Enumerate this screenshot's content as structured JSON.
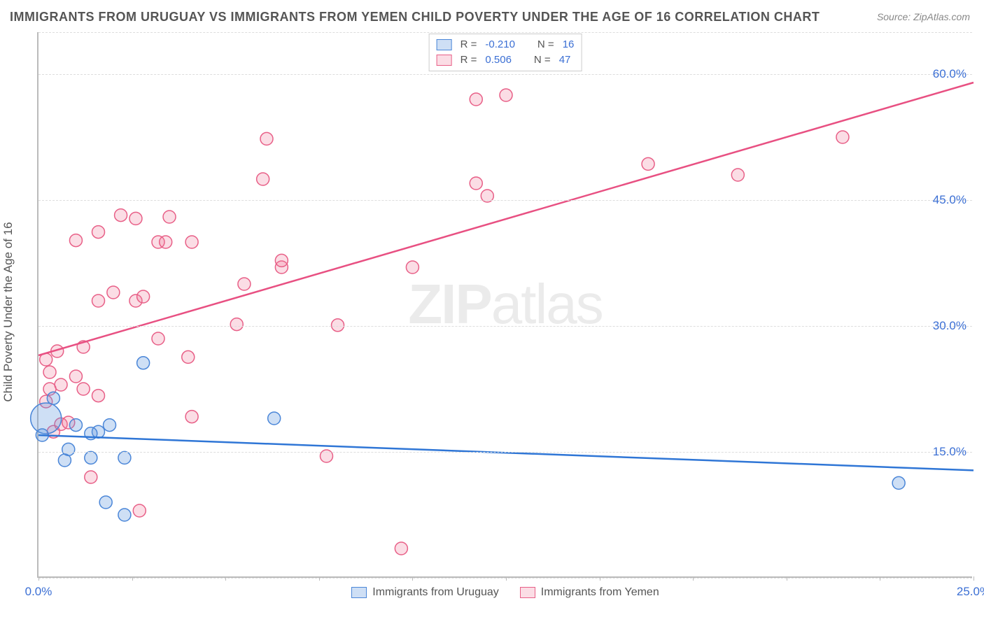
{
  "title": "IMMIGRANTS FROM URUGUAY VS IMMIGRANTS FROM YEMEN CHILD POVERTY UNDER THE AGE OF 16 CORRELATION CHART",
  "source": "Source: ZipAtlas.com",
  "ylabel": "Child Poverty Under the Age of 16",
  "watermark_bold": "ZIP",
  "watermark_light": "atlas",
  "chart": {
    "type": "scatter",
    "xlim": [
      0,
      25
    ],
    "ylim": [
      0,
      65
    ],
    "xticks": [
      0,
      25
    ],
    "xtick_labels": [
      "0.0%",
      "25.0%"
    ],
    "xtick_marks": [
      0,
      2.5,
      5,
      7.5,
      10,
      12.5,
      15,
      17.5,
      20,
      22.5,
      25
    ],
    "yticks": [
      15,
      30,
      45,
      60
    ],
    "ytick_labels": [
      "15.0%",
      "30.0%",
      "45.0%",
      "60.0%"
    ],
    "grid_y": [
      0,
      15,
      30,
      45,
      60,
      65
    ],
    "background_color": "#ffffff",
    "grid_color": "#dddddd",
    "axis_color": "#bbbbbb",
    "tick_label_color": "#3b6fd4"
  },
  "series": {
    "uruguay": {
      "label": "Immigrants from Uruguay",
      "color_fill": "rgba(93,150,222,0.30)",
      "color_stroke": "#4a86d8",
      "line_color": "#2f76d6",
      "marker_r": 9,
      "R_label": "R =",
      "R": "-0.210",
      "N_label": "N =",
      "N": "16",
      "trend": {
        "x1": 0,
        "y1": 17.0,
        "x2": 25,
        "y2": 12.8
      },
      "points": [
        {
          "x": 0.2,
          "y": 19.0,
          "r": 22
        },
        {
          "x": 0.1,
          "y": 17.0,
          "r": 9
        },
        {
          "x": 0.8,
          "y": 15.3,
          "r": 9
        },
        {
          "x": 1.4,
          "y": 14.3,
          "r": 9
        },
        {
          "x": 0.7,
          "y": 14.0,
          "r": 9
        },
        {
          "x": 2.3,
          "y": 14.3,
          "r": 9
        },
        {
          "x": 1.0,
          "y": 18.2,
          "r": 9
        },
        {
          "x": 1.9,
          "y": 18.2,
          "r": 9
        },
        {
          "x": 1.6,
          "y": 17.4,
          "r": 9
        },
        {
          "x": 1.4,
          "y": 17.2,
          "r": 9
        },
        {
          "x": 2.8,
          "y": 25.6,
          "r": 9
        },
        {
          "x": 6.3,
          "y": 19.0,
          "r": 9
        },
        {
          "x": 1.8,
          "y": 9.0,
          "r": 9
        },
        {
          "x": 2.3,
          "y": 7.5,
          "r": 9
        },
        {
          "x": 23.0,
          "y": 11.3,
          "r": 9
        },
        {
          "x": 0.4,
          "y": 21.4,
          "r": 9
        }
      ]
    },
    "yemen": {
      "label": "Immigrants from Yemen",
      "color_fill": "rgba(238,120,150,0.25)",
      "color_stroke": "#e85f87",
      "line_color": "#e85082",
      "marker_r": 9,
      "R_label": "R =",
      "R": "0.506",
      "N_label": "N =",
      "N": "47",
      "trend": {
        "x1": 0,
        "y1": 26.5,
        "x2": 25,
        "y2": 59.0
      },
      "points": [
        {
          "x": 0.2,
          "y": 21.0,
          "r": 9
        },
        {
          "x": 0.3,
          "y": 22.5,
          "r": 9
        },
        {
          "x": 0.3,
          "y": 24.5,
          "r": 9
        },
        {
          "x": 0.5,
          "y": 27.0,
          "r": 9
        },
        {
          "x": 0.6,
          "y": 23.0,
          "r": 9
        },
        {
          "x": 0.2,
          "y": 26.0,
          "r": 9
        },
        {
          "x": 0.4,
          "y": 17.4,
          "r": 9
        },
        {
          "x": 0.6,
          "y": 18.3,
          "r": 9
        },
        {
          "x": 0.8,
          "y": 18.5,
          "r": 9
        },
        {
          "x": 1.0,
          "y": 24.0,
          "r": 9
        },
        {
          "x": 1.2,
          "y": 27.5,
          "r": 9
        },
        {
          "x": 1.2,
          "y": 22.5,
          "r": 9
        },
        {
          "x": 1.6,
          "y": 21.7,
          "r": 9
        },
        {
          "x": 1.6,
          "y": 33.0,
          "r": 9
        },
        {
          "x": 2.0,
          "y": 34.0,
          "r": 9
        },
        {
          "x": 1.0,
          "y": 40.2,
          "r": 9
        },
        {
          "x": 1.6,
          "y": 41.2,
          "r": 9
        },
        {
          "x": 2.2,
          "y": 43.2,
          "r": 9
        },
        {
          "x": 2.6,
          "y": 42.8,
          "r": 9
        },
        {
          "x": 2.6,
          "y": 33.0,
          "r": 9
        },
        {
          "x": 2.8,
          "y": 33.5,
          "r": 9
        },
        {
          "x": 3.2,
          "y": 40.0,
          "r": 9
        },
        {
          "x": 3.5,
          "y": 43.0,
          "r": 9
        },
        {
          "x": 3.4,
          "y": 40.0,
          "r": 9
        },
        {
          "x": 3.2,
          "y": 28.5,
          "r": 9
        },
        {
          "x": 4.1,
          "y": 40.0,
          "r": 9
        },
        {
          "x": 4.0,
          "y": 26.3,
          "r": 9
        },
        {
          "x": 4.1,
          "y": 19.2,
          "r": 9
        },
        {
          "x": 5.3,
          "y": 30.2,
          "r": 9
        },
        {
          "x": 5.5,
          "y": 35.0,
          "r": 9
        },
        {
          "x": 6.0,
          "y": 47.5,
          "r": 9
        },
        {
          "x": 6.1,
          "y": 52.3,
          "r": 9
        },
        {
          "x": 6.5,
          "y": 37.0,
          "r": 9
        },
        {
          "x": 6.5,
          "y": 37.8,
          "r": 9
        },
        {
          "x": 8.0,
          "y": 30.1,
          "r": 9
        },
        {
          "x": 7.7,
          "y": 14.5,
          "r": 9
        },
        {
          "x": 10.0,
          "y": 37.0,
          "r": 9
        },
        {
          "x": 9.7,
          "y": 3.5,
          "r": 9
        },
        {
          "x": 11.7,
          "y": 47.0,
          "r": 9
        },
        {
          "x": 11.7,
          "y": 57.0,
          "r": 9
        },
        {
          "x": 12.0,
          "y": 45.5,
          "r": 9
        },
        {
          "x": 12.5,
          "y": 57.5,
          "r": 9
        },
        {
          "x": 16.3,
          "y": 49.3,
          "r": 9
        },
        {
          "x": 18.7,
          "y": 48.0,
          "r": 9
        },
        {
          "x": 21.5,
          "y": 52.5,
          "r": 9
        },
        {
          "x": 1.4,
          "y": 12.0,
          "r": 9
        },
        {
          "x": 2.7,
          "y": 8.0,
          "r": 9
        }
      ]
    }
  }
}
